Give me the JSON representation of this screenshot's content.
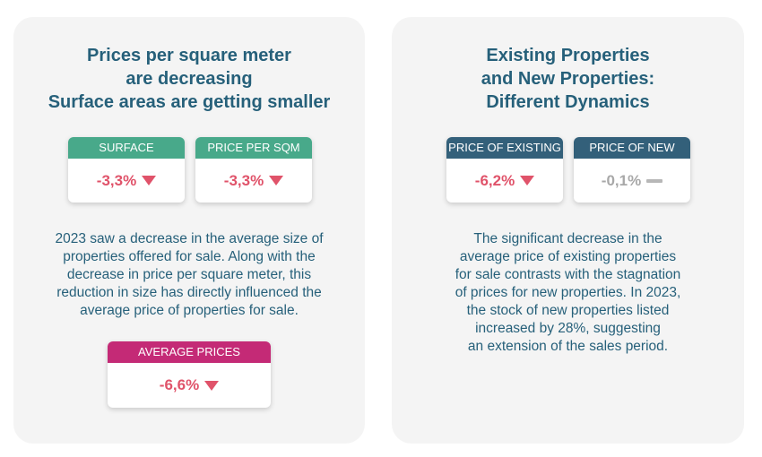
{
  "colors": {
    "teal": "#26607a",
    "green_header": "#48a98a",
    "magenta_header": "#c42a76",
    "navy_header": "#33607a",
    "negative_red": "#e0536a",
    "neutral_gray": "#a8a8a8"
  },
  "left": {
    "title_line1": "Prices per square meter",
    "title_line2": "are decreasing",
    "title_line3": "Surface areas are getting smaller",
    "cards": [
      {
        "label": "SURFACE",
        "value": "-3,3%",
        "trend": "down"
      },
      {
        "label": "PRICE PER SQM",
        "value": "-3,3%",
        "trend": "down"
      }
    ],
    "paragraph": [
      "2023 saw a decrease in the average size of",
      "properties offered for sale. Along with the",
      "decrease in price per square meter, this",
      "reduction in size has directly influenced the",
      "average price of properties for sale."
    ],
    "avg_card": {
      "label": "AVERAGE PRICES",
      "value": "-6,6%",
      "trend": "down"
    }
  },
  "right": {
    "title_line1": "Existing Properties",
    "title_line2": "and New Properties:",
    "title_line3": "Different Dynamics",
    "cards": [
      {
        "label": "PRICE OF EXISTING",
        "value": "-6,2%",
        "trend": "down"
      },
      {
        "label": "PRICE OF NEW",
        "value": "-0,1%",
        "trend": "flat"
      }
    ],
    "paragraph": [
      "The significant decrease in the",
      "average price of existing properties",
      "for sale contrasts with the stagnation",
      "of prices for new properties. In 2023,",
      "the stock of new properties listed",
      "increased by 28%, suggesting",
      "an extension of the sales period."
    ]
  }
}
